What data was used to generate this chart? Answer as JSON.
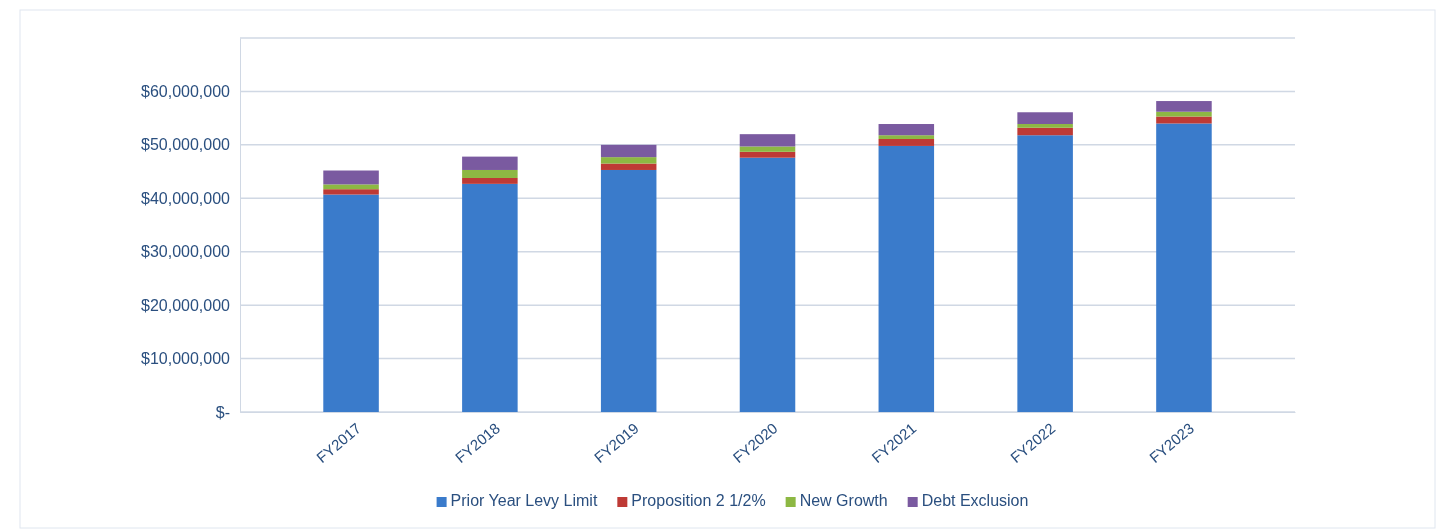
{
  "chart_data": {
    "type": "bar",
    "stacked": true,
    "categories": [
      "FY2017",
      "FY2018",
      "FY2019",
      "FY2020",
      "FY2021",
      "FY2022",
      "FY2023"
    ],
    "series": [
      {
        "name": "Prior Year Levy Limit",
        "color": "#3a7bcb",
        "values": [
          40700000,
          42700000,
          45300000,
          47600000,
          49800000,
          51800000,
          54000000
        ]
      },
      {
        "name": "Proposition 2 1/2%",
        "color": "#be3a35",
        "values": [
          1000000,
          1100000,
          1200000,
          1100000,
          1300000,
          1400000,
          1300000
        ]
      },
      {
        "name": "New Growth",
        "color": "#8db843",
        "values": [
          900000,
          1500000,
          1200000,
          1000000,
          700000,
          700000,
          900000
        ]
      },
      {
        "name": "Debt Exclusion",
        "color": "#7a5aa0",
        "values": [
          2600000,
          2500000,
          2300000,
          2300000,
          2100000,
          2200000,
          2000000
        ]
      }
    ],
    "ylim": [
      0,
      70000000
    ],
    "yticks": [
      {
        "value": 0,
        "label": "$-"
      },
      {
        "value": 10000000,
        "label": "$10,000,000"
      },
      {
        "value": 20000000,
        "label": "$20,000,000"
      },
      {
        "value": 30000000,
        "label": "$30,000,000"
      },
      {
        "value": 40000000,
        "label": "$40,000,000"
      },
      {
        "value": 50000000,
        "label": "$50,000,000"
      },
      {
        "value": 60000000,
        "label": "$60,000,000"
      },
      {
        "value": 70000000,
        "label": null
      }
    ],
    "grid": "y",
    "legend": "bottom"
  }
}
